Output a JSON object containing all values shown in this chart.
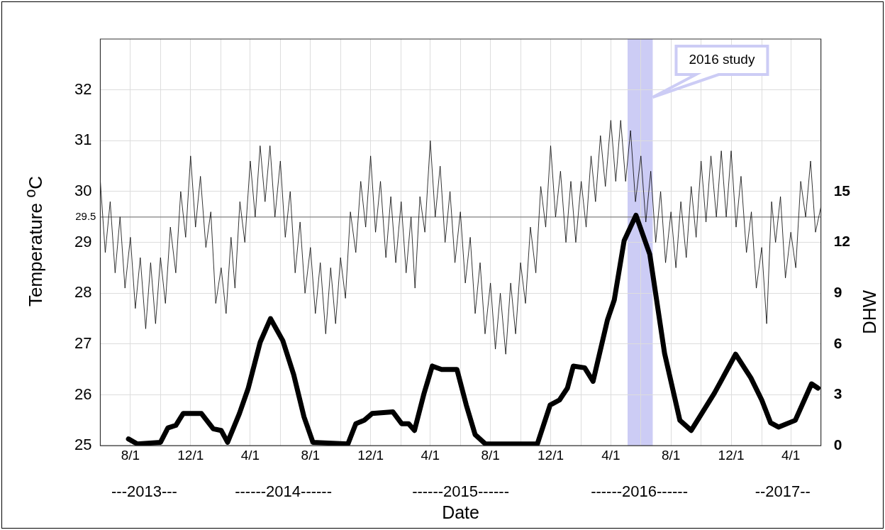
{
  "chart_data": {
    "type": "line",
    "xlabel": "Date",
    "ylabel": "Temperature $^{o}$C",
    "y2label": "DHW",
    "grid": true,
    "marker": "none",
    "line_style": "solid",
    "xlim": [
      "2013-06-01",
      "2017-06-01"
    ],
    "xticks": [
      {
        "value": "2013-08-01",
        "label": "8/1"
      },
      {
        "value": "2013-10-01",
        "label": null
      },
      {
        "value": "2013-12-01",
        "label": "12/1"
      },
      {
        "value": "2014-02-01",
        "label": null
      },
      {
        "value": "2014-04-01",
        "label": "4/1"
      },
      {
        "value": "2014-06-01",
        "label": null
      },
      {
        "value": "2014-08-01",
        "label": "8/1"
      },
      {
        "value": "2014-10-01",
        "label": null
      },
      {
        "value": "2014-12-01",
        "label": "12/1"
      },
      {
        "value": "2015-02-01",
        "label": null
      },
      {
        "value": "2015-04-01",
        "label": "4/1"
      },
      {
        "value": "2015-06-01",
        "label": null
      },
      {
        "value": "2015-08-01",
        "label": "8/1"
      },
      {
        "value": "2015-10-01",
        "label": null
      },
      {
        "value": "2015-12-01",
        "label": "12/1"
      },
      {
        "value": "2016-02-01",
        "label": null
      },
      {
        "value": "2016-04-01",
        "label": "4/1"
      },
      {
        "value": "2016-06-01",
        "label": null
      },
      {
        "value": "2016-08-01",
        "label": "8/1"
      },
      {
        "value": "2016-10-01",
        "label": null
      },
      {
        "value": "2016-12-01",
        "label": "12/1"
      },
      {
        "value": "2017-02-01",
        "label": null
      },
      {
        "value": "2017-04-01",
        "label": "4/1"
      }
    ],
    "ylim": [
      25,
      33
    ],
    "yticks": [
      25,
      26,
      27,
      28,
      29,
      30,
      31,
      32
    ],
    "y2lim": [
      0,
      24
    ],
    "y2ticks": [
      0,
      3,
      6,
      9,
      12,
      15
    ],
    "ref_lines": [
      {
        "axis": "y",
        "value": 29.5,
        "label": "29.5",
        "color": "#808080"
      }
    ],
    "bands": [
      {
        "axis": "x",
        "from": "2016-05-05",
        "to": "2016-06-25",
        "label": "2016 study",
        "color": "#ccccf5"
      }
    ],
    "annotations": [
      "---2013---",
      "------2014------",
      "------2015------",
      "------2016------",
      "--2017--"
    ],
    "series": [
      {
        "color": "#000000",
        "x": [
          "2013-06-01",
          "2013-06-11",
          "2013-06-21",
          "2013-07-01",
          "2013-07-11",
          "2013-07-21",
          "2013-08-01",
          "2013-08-11",
          "2013-08-21",
          "2013-09-01",
          "2013-09-11",
          "2013-09-21",
          "2013-10-01",
          "2013-10-11",
          "2013-10-21",
          "2013-11-01",
          "2013-11-11",
          "2013-11-21",
          "2013-12-01",
          "2013-12-11",
          "2013-12-21",
          "2014-01-01",
          "2014-01-11",
          "2014-01-21",
          "2014-02-01",
          "2014-02-11",
          "2014-02-21",
          "2014-03-01",
          "2014-03-11",
          "2014-03-21",
          "2014-04-01",
          "2014-04-11",
          "2014-04-21",
          "2014-05-01",
          "2014-05-11",
          "2014-05-21",
          "2014-06-01",
          "2014-06-11",
          "2014-06-21",
          "2014-07-01",
          "2014-07-11",
          "2014-07-21",
          "2014-08-01",
          "2014-08-11",
          "2014-08-21",
          "2014-09-01",
          "2014-09-11",
          "2014-09-21",
          "2014-10-01",
          "2014-10-11",
          "2014-10-21",
          "2014-11-01",
          "2014-11-11",
          "2014-11-21",
          "2014-12-01",
          "2014-12-11",
          "2014-12-21",
          "2015-01-01",
          "2015-01-11",
          "2015-01-21",
          "2015-02-01",
          "2015-02-11",
          "2015-02-21",
          "2015-03-01",
          "2015-03-11",
          "2015-03-21",
          "2015-04-01",
          "2015-04-11",
          "2015-04-21",
          "2015-05-01",
          "2015-05-11",
          "2015-05-21",
          "2015-06-01",
          "2015-06-11",
          "2015-06-21",
          "2015-07-01",
          "2015-07-11",
          "2015-07-21",
          "2015-08-01",
          "2015-08-11",
          "2015-08-21",
          "2015-09-01",
          "2015-09-11",
          "2015-09-21",
          "2015-10-01",
          "2015-10-11",
          "2015-10-21",
          "2015-11-01",
          "2015-11-11",
          "2015-11-21",
          "2015-12-01",
          "2015-12-11",
          "2015-12-21",
          "2016-01-01",
          "2016-01-11",
          "2016-01-21",
          "2016-02-01",
          "2016-02-11",
          "2016-02-21",
          "2016-03-01",
          "2016-03-11",
          "2016-03-21",
          "2016-04-01",
          "2016-04-11",
          "2016-04-21",
          "2016-05-01",
          "2016-05-11",
          "2016-05-21",
          "2016-06-01",
          "2016-06-11",
          "2016-06-21",
          "2016-07-01",
          "2016-07-11",
          "2016-07-21",
          "2016-08-01",
          "2016-08-11",
          "2016-08-21",
          "2016-09-01",
          "2016-09-11",
          "2016-09-21",
          "2016-10-01",
          "2016-10-11",
          "2016-10-21",
          "2016-11-01",
          "2016-11-11",
          "2016-11-21",
          "2016-12-01",
          "2016-12-11",
          "2016-12-21",
          "2017-01-01",
          "2017-01-11",
          "2017-01-21",
          "2017-02-01",
          "2017-02-11",
          "2017-02-21",
          "2017-03-01",
          "2017-03-11",
          "2017-03-21",
          "2017-04-01",
          "2017-04-11",
          "2017-04-21",
          "2017-05-01",
          "2017-05-11",
          "2017-05-21",
          "2017-06-01"
        ],
        "values": [
          30.2,
          28.8,
          29.8,
          28.4,
          29.5,
          28.1,
          29.1,
          27.7,
          28.7,
          27.3,
          28.6,
          27.4,
          28.7,
          27.8,
          29.3,
          28.4,
          30.0,
          29.1,
          30.7,
          29.3,
          30.3,
          28.9,
          29.6,
          27.8,
          28.5,
          27.6,
          29.1,
          28.1,
          29.8,
          29.0,
          30.6,
          29.5,
          30.9,
          29.8,
          30.9,
          29.5,
          30.6,
          29.1,
          30.0,
          28.4,
          29.4,
          28.0,
          28.9,
          27.6,
          28.6,
          27.2,
          28.5,
          27.4,
          28.7,
          27.9,
          29.6,
          28.8,
          30.2,
          29.3,
          30.7,
          29.2,
          30.2,
          28.7,
          29.9,
          28.6,
          29.8,
          28.4,
          29.5,
          28.1,
          29.9,
          29.2,
          31.0,
          29.5,
          30.5,
          29.0,
          30.0,
          28.6,
          29.6,
          28.2,
          29.1,
          27.6,
          28.6,
          27.2,
          28.2,
          26.9,
          28.0,
          26.8,
          28.2,
          27.2,
          28.6,
          27.8,
          29.3,
          28.4,
          30.1,
          29.3,
          30.9,
          29.5,
          30.4,
          29.0,
          30.2,
          29.0,
          30.2,
          29.3,
          30.7,
          29.8,
          31.1,
          30.1,
          31.4,
          30.2,
          31.4,
          30.2,
          31.2,
          29.8,
          30.7,
          29.4,
          30.4,
          29.0,
          30.0,
          28.6,
          29.6,
          28.5,
          29.8,
          28.7,
          30.1,
          29.1,
          30.6,
          29.4,
          30.7,
          29.5,
          30.8,
          29.5,
          30.8,
          29.3,
          30.3,
          28.8,
          29.6,
          28.1,
          28.9,
          27.4,
          29.8,
          29.0,
          29.9,
          28.3,
          29.2,
          28.5,
          30.2,
          29.5,
          30.6,
          29.2,
          29.7
        ]
      },
      {
        "color": "#000000",
        "axis": "y2",
        "x": [
          "2013-07-28",
          "2013-08-15",
          "2013-10-01",
          "2013-10-16",
          "2013-11-01",
          "2013-11-16",
          "2013-12-23",
          "2014-01-16",
          "2014-02-01",
          "2014-02-14",
          "2014-03-10",
          "2014-03-28",
          "2014-04-21",
          "2014-05-12",
          "2014-06-06",
          "2014-06-28",
          "2014-07-19",
          "2014-08-06",
          "2014-10-16",
          "2014-11-01",
          "2014-11-18",
          "2014-12-04",
          "2015-01-15",
          "2015-02-02",
          "2015-02-16",
          "2015-02-28",
          "2015-03-19",
          "2015-04-05",
          "2015-04-24",
          "2015-05-25",
          "2015-06-13",
          "2015-07-01",
          "2015-07-22",
          "2015-11-04",
          "2015-11-30",
          "2015-12-19",
          "2016-01-04",
          "2016-01-16",
          "2016-02-08",
          "2016-02-25",
          "2016-03-25",
          "2016-04-08",
          "2016-04-28",
          "2016-05-22",
          "2016-06-19",
          "2016-07-19",
          "2016-08-19",
          "2016-09-11",
          "2016-10-28",
          "2016-12-10",
          "2017-01-10",
          "2017-02-01",
          "2017-02-19",
          "2017-03-07",
          "2017-04-10",
          "2017-05-13",
          "2017-05-26"
        ],
        "values": [
          0.4,
          0.1,
          0.2,
          1.05,
          1.2,
          1.9,
          1.9,
          1.0,
          0.9,
          0.2,
          1.9,
          3.4,
          6.1,
          7.5,
          6.2,
          4.2,
          1.7,
          0.2,
          0.1,
          1.3,
          1.5,
          1.9,
          2.0,
          1.3,
          1.3,
          0.9,
          3.05,
          4.7,
          4.5,
          4.5,
          2.4,
          0.65,
          0.1,
          0.1,
          2.4,
          2.7,
          3.4,
          4.7,
          4.6,
          3.8,
          7.4,
          8.6,
          12.1,
          13.6,
          11.3,
          5.45,
          1.5,
          0.9,
          3.1,
          5.4,
          4.0,
          2.7,
          1.35,
          1.1,
          1.5,
          3.65,
          3.4
        ]
      }
    ]
  }
}
